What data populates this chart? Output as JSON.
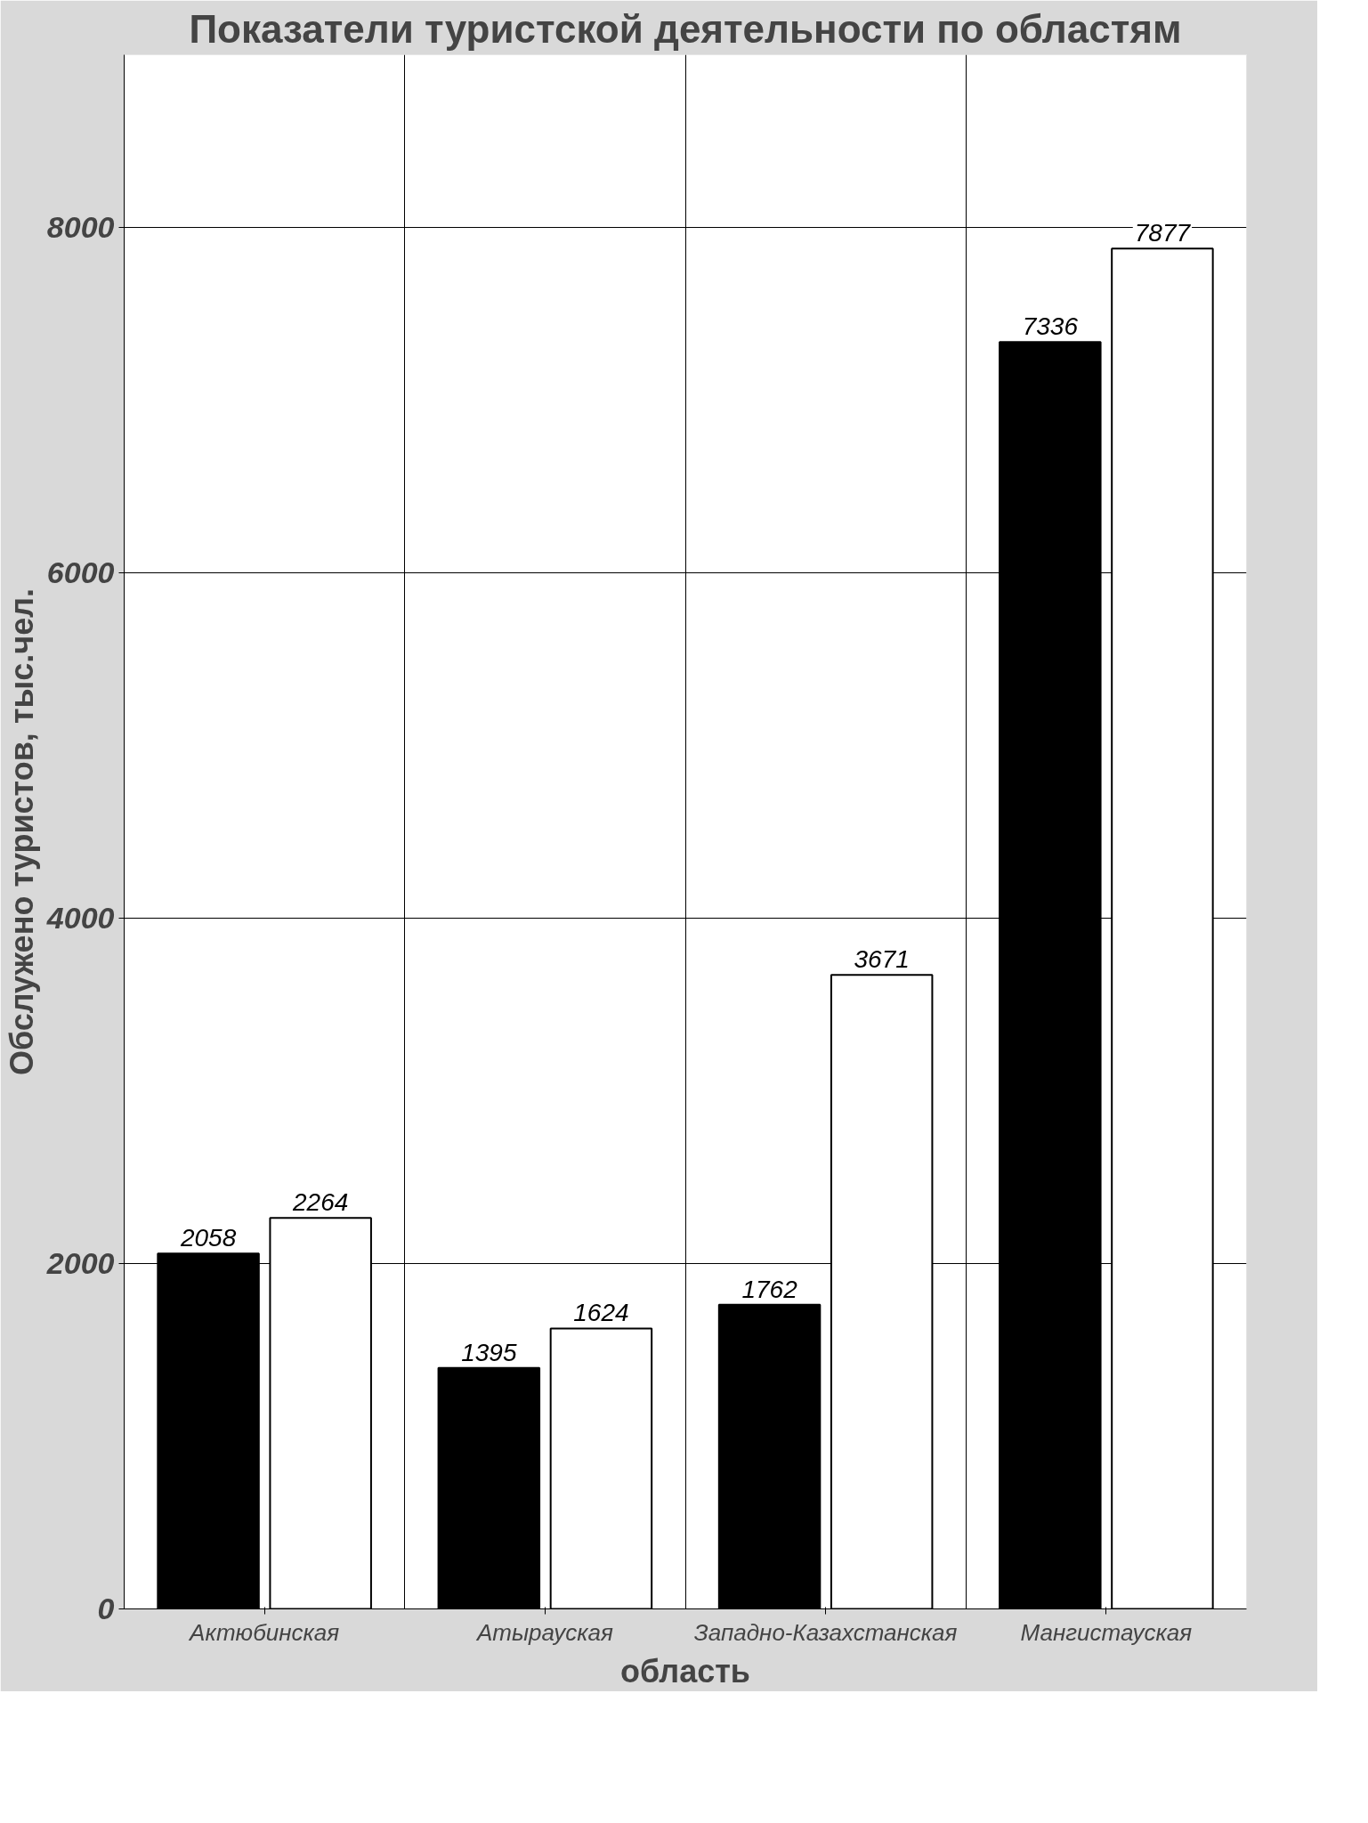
{
  "chart_data": {
    "type": "bar",
    "title": "Показатели туристской деятельности по областям",
    "xlabel": "область",
    "ylabel": "Обслужено туристов, тыс.чел.",
    "categories": [
      "Актюбинская",
      "Атырауская",
      "Западно-Казахстанская",
      "Мангистауская"
    ],
    "series": [
      {
        "color": "#000000",
        "values": [
          2058,
          1395,
          1762,
          7336
        ]
      },
      {
        "color": "#ffffff",
        "values": [
          2264,
          1624,
          3671,
          7877
        ]
      }
    ],
    "ylim": [
      0,
      9000
    ],
    "yticks": [
      0,
      2000,
      4000,
      6000,
      8000
    ],
    "grid": true,
    "data_labels": true
  }
}
